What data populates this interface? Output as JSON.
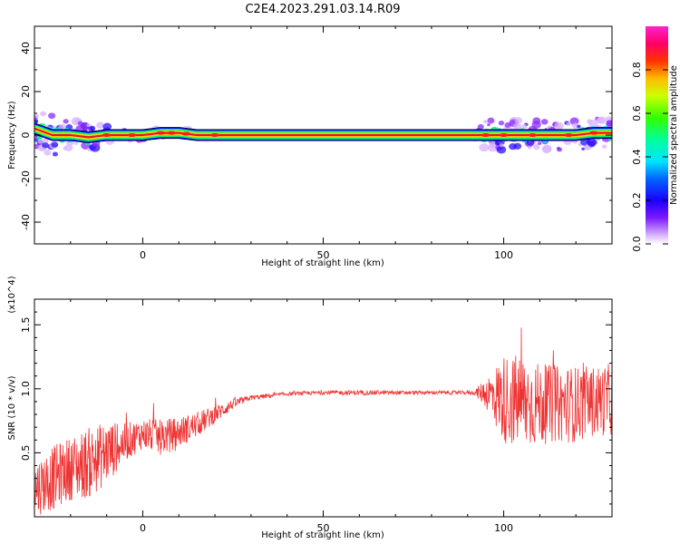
{
  "title": "C2E4.2023.291.03.14.R09",
  "colors": {
    "snr_line": "#ee3333",
    "ridge_center": "#dd1122",
    "axes": "#000000"
  },
  "colorbar": {
    "label": "Normalized spectral amplitude",
    "ticks": [
      "0.0",
      "0.2",
      "0.4",
      "0.6",
      "0.8"
    ],
    "tick_values": [
      0.0,
      0.2,
      0.4,
      0.6,
      0.8
    ],
    "range": [
      0,
      1
    ],
    "colormap": [
      "#ffffff",
      "#cc88ff",
      "#6600ff",
      "#0000ff",
      "#00ffff",
      "#00ff00",
      "#ffff00",
      "#ff8800",
      "#ff0000",
      "#ff00ff"
    ]
  },
  "chart_data": [
    {
      "type": "heatmap",
      "name": "spectrogram",
      "xlabel": "Height of straight line (km)",
      "ylabel": "Frequency (Hz)",
      "xlim": [
        -30,
        130
      ],
      "ylim": [
        -50,
        50
      ],
      "x_ticks": [
        0,
        50,
        100
      ],
      "x_tick_labels": [
        "0",
        "50",
        "100"
      ],
      "y_ticks": [
        -40,
        -20,
        0,
        20,
        40
      ],
      "y_tick_labels": [
        "-40",
        "-20",
        "0",
        "20",
        "40"
      ],
      "ridge": {
        "x": [
          -30,
          -25,
          -20,
          -15,
          -10,
          -5,
          0,
          5,
          10,
          15,
          20,
          30,
          40,
          50,
          60,
          70,
          80,
          90,
          95,
          100,
          105,
          110,
          115,
          120,
          125,
          130
        ],
        "freq": [
          3,
          0,
          0,
          -1,
          0,
          0,
          0,
          1,
          1,
          0,
          0,
          0,
          0,
          0,
          0,
          0,
          0,
          0,
          0,
          0,
          0,
          0,
          0,
          0,
          1,
          1
        ],
        "spread": [
          10,
          9,
          8,
          7,
          4,
          3,
          3,
          2,
          2,
          2,
          1,
          1,
          1,
          1,
          1,
          1,
          1,
          1,
          7,
          7,
          7,
          7,
          7,
          7,
          7,
          7
        ]
      }
    },
    {
      "type": "line",
      "name": "snr",
      "xlabel": "Height of straight line (km)",
      "ylabel": "SNR (10 * v/v)",
      "y_multiplier_label": "(x10^4)",
      "xlim": [
        -30,
        130
      ],
      "ylim": [
        0,
        1.7
      ],
      "x_ticks": [
        0,
        50,
        100
      ],
      "x_tick_labels": [
        "0",
        "50",
        "100"
      ],
      "y_ticks": [
        0.5,
        1.0,
        1.5
      ],
      "y_tick_labels": [
        "0.5",
        "1.0",
        "1.5"
      ],
      "trend": {
        "x": [
          -30,
          -25,
          -20,
          -15,
          -10,
          -5,
          0,
          5,
          10,
          15,
          20,
          25,
          30,
          40,
          50,
          60,
          70,
          80,
          90,
          92,
          95,
          100,
          105,
          110,
          115,
          120,
          125,
          130
        ],
        "y": [
          0.22,
          0.3,
          0.38,
          0.42,
          0.5,
          0.58,
          0.65,
          0.62,
          0.66,
          0.72,
          0.8,
          0.88,
          0.93,
          0.96,
          0.97,
          0.97,
          0.97,
          0.97,
          0.97,
          0.97,
          0.97,
          0.92,
          0.9,
          0.88,
          0.88,
          0.88,
          0.9,
          0.92
        ],
        "noise": [
          0.22,
          0.25,
          0.25,
          0.28,
          0.25,
          0.15,
          0.12,
          0.14,
          0.12,
          0.1,
          0.07,
          0.04,
          0.02,
          0.015,
          0.015,
          0.02,
          0.015,
          0.015,
          0.015,
          0.02,
          0.12,
          0.35,
          0.38,
          0.32,
          0.3,
          0.3,
          0.28,
          0.28
        ]
      }
    }
  ]
}
